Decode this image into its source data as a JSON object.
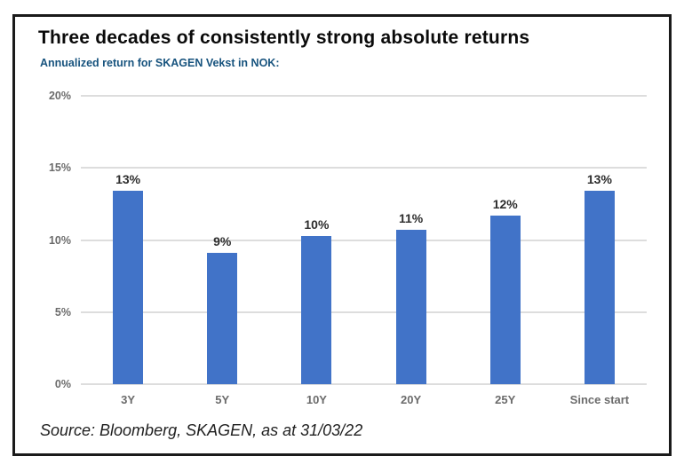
{
  "header": {
    "title": "Three decades of consistently strong absolute returns",
    "subtitle": "Annualized return for SKAGEN Vekst in NOK:"
  },
  "chart_data": {
    "type": "bar",
    "title": "Three decades of consistently strong absolute returns",
    "subtitle": "Annualized return for SKAGEN Vekst in NOK:",
    "categories": [
      "3Y",
      "5Y",
      "10Y",
      "20Y",
      "25Y",
      "Since start"
    ],
    "values": [
      13.4,
      9.1,
      10.3,
      10.7,
      11.7,
      13.4
    ],
    "data_labels": [
      "13%",
      "9%",
      "10%",
      "11%",
      "12%",
      "13%"
    ],
    "xlabel": "",
    "ylabel": "",
    "ylim": [
      0,
      20
    ],
    "ytick_values": [
      0,
      5,
      10,
      15,
      20
    ],
    "ytick_labels": [
      "0%",
      "5%",
      "10%",
      "15%",
      "20%"
    ],
    "grid": true,
    "legend": "none",
    "bar_color": "#4173C8"
  },
  "footer": {
    "source": "Source: Bloomberg, SKAGEN, as at 31/03/22"
  },
  "colors": {
    "accent_blue": "#4173C8",
    "subtitle_blue": "#17537E",
    "axis_label_gray": "#6b6b6b",
    "gridline_gray": "#dddddd",
    "frame_border": "#1a1a1a",
    "data_label": "#2d2d2d"
  }
}
